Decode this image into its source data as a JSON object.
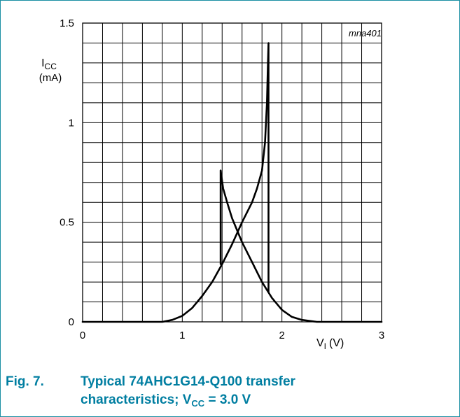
{
  "chart_data": {
    "type": "line",
    "watermark": "mna401",
    "ylabel": {
      "symbol": "I",
      "subscript": "CC",
      "unit": "(mA)"
    },
    "xlabel": {
      "symbol": "V",
      "subscript": "I",
      "unit": "(V)"
    },
    "xlim": [
      0,
      3
    ],
    "ylim": [
      0,
      1.5
    ],
    "x_ticks": [
      {
        "value": 0,
        "label": "0"
      },
      {
        "value": 1,
        "label": "1"
      },
      {
        "value": 2,
        "label": "2"
      },
      {
        "value": 3,
        "label": "3"
      }
    ],
    "y_ticks": [
      {
        "value": 0,
        "label": "0"
      },
      {
        "value": 0.5,
        "label": "0.5"
      },
      {
        "value": 1,
        "label": "1"
      },
      {
        "value": 1.5,
        "label": "1.5"
      }
    ],
    "grid": true,
    "x_minor_step": 0.2,
    "y_minor_step": 0.1,
    "series": [
      {
        "x": [
          0,
          0.8,
          0.9,
          1.0,
          1.1,
          1.2,
          1.3,
          1.4,
          1.5,
          1.6,
          1.7,
          1.75,
          1.8,
          1.83,
          1.85,
          1.86,
          1.865,
          1.865
        ],
        "y": [
          0,
          0,
          0.01,
          0.03,
          0.07,
          0.13,
          0.2,
          0.29,
          0.39,
          0.5,
          0.6,
          0.67,
          0.76,
          0.9,
          1.1,
          1.3,
          1.4,
          0.15
        ]
      },
      {
        "x": [
          1.385,
          1.385,
          1.41,
          1.45,
          1.5,
          1.6,
          1.7,
          1.8,
          1.9,
          2.0,
          2.1,
          2.2,
          2.35,
          3.0
        ],
        "y": [
          0.29,
          0.76,
          0.67,
          0.6,
          0.52,
          0.4,
          0.3,
          0.2,
          0.12,
          0.06,
          0.025,
          0.01,
          0,
          0
        ]
      }
    ]
  },
  "caption": {
    "fig_number": "Fig. 7.",
    "line1": "Typical 74AHC1G14-Q100 transfer",
    "line2_prefix": "characteristics; V",
    "line2_sub": "CC",
    "line2_suffix": " = 3.0 V"
  }
}
